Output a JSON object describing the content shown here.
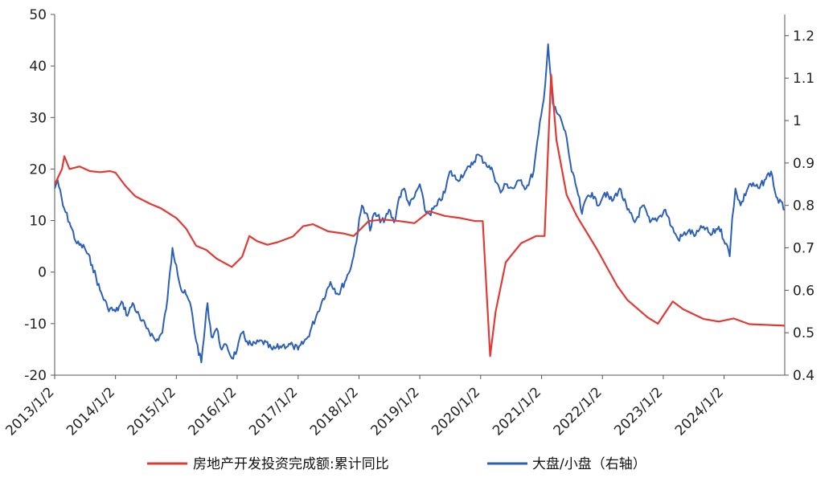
{
  "chart_data": {
    "type": "line",
    "title": "",
    "xlabel": "",
    "ylabel_left": "",
    "ylabel_right": "",
    "grid": false,
    "legend_position": "bottom",
    "x_ticks": [
      "2013/1/2",
      "2014/1/2",
      "2015/1/2",
      "2016/1/2",
      "2017/1/2",
      "2018/1/2",
      "2019/1/2",
      "2020/1/2",
      "2021/1/2",
      "2022/1/2",
      "2023/1/2",
      "2024/1/2"
    ],
    "x_range": [
      "2013/1/2",
      "2024/12/31"
    ],
    "y_left": {
      "range": [
        -20,
        50
      ],
      "ticks": [
        -20,
        -10,
        0,
        10,
        20,
        30,
        40,
        50
      ]
    },
    "y_right": {
      "range": [
        0.4,
        1.25
      ],
      "ticks": [
        "0.4",
        "0.5",
        "0.6",
        "0.7",
        "0.8",
        "0.9",
        "1",
        "1.1",
        "1.2"
      ]
    },
    "series": [
      {
        "name": "房地产开发投资完成额:累计同比",
        "axis": "left",
        "color": "#e03a33",
        "points": [
          [
            "2013/1/2",
            17
          ],
          [
            "2013/2/15",
            20
          ],
          [
            "2013/3/1",
            22.5
          ],
          [
            "2013/4/1",
            20
          ],
          [
            "2013/6/1",
            20.5
          ],
          [
            "2013/8/1",
            19.6
          ],
          [
            "2013/10/1",
            19.4
          ],
          [
            "2013/12/1",
            19.6
          ],
          [
            "2014/1/2",
            19.3
          ],
          [
            "2014/3/1",
            16.8
          ],
          [
            "2014/5/1",
            14.7
          ],
          [
            "2014/8/1",
            13.2
          ],
          [
            "2014/10/1",
            12.4
          ],
          [
            "2015/1/2",
            10.5
          ],
          [
            "2015/3/1",
            8.5
          ],
          [
            "2015/5/1",
            5.1
          ],
          [
            "2015/7/1",
            4.3
          ],
          [
            "2015/9/1",
            2.6
          ],
          [
            "2015/12/1",
            1.0
          ],
          [
            "2016/2/1",
            3.0
          ],
          [
            "2016/3/15",
            7.0
          ],
          [
            "2016/5/1",
            6.0
          ],
          [
            "2016/7/1",
            5.3
          ],
          [
            "2016/9/1",
            5.8
          ],
          [
            "2016/12/1",
            6.9
          ],
          [
            "2017/2/1",
            8.9
          ],
          [
            "2017/4/1",
            9.3
          ],
          [
            "2017/7/1",
            7.9
          ],
          [
            "2017/10/1",
            7.5
          ],
          [
            "2017/12/1",
            7.0
          ],
          [
            "2018/3/1",
            9.9
          ],
          [
            "2018/6/1",
            10.2
          ],
          [
            "2018/9/1",
            9.9
          ],
          [
            "2018/12/1",
            9.5
          ],
          [
            "2019/3/1",
            11.8
          ],
          [
            "2019/6/1",
            10.9
          ],
          [
            "2019/9/1",
            10.5
          ],
          [
            "2019/12/1",
            9.9
          ],
          [
            "2020/1/15",
            9.9
          ],
          [
            "2020/2/28",
            -16.3
          ],
          [
            "2020/4/1",
            -7.7
          ],
          [
            "2020/6/1",
            1.9
          ],
          [
            "2020/9/1",
            5.6
          ],
          [
            "2020/12/1",
            7.0
          ],
          [
            "2021/1/20",
            7.0
          ],
          [
            "2021/2/28",
            38.3
          ],
          [
            "2021/4/1",
            25.6
          ],
          [
            "2021/6/1",
            15.0
          ],
          [
            "2021/8/1",
            10.9
          ],
          [
            "2021/12/1",
            4.4
          ],
          [
            "2022/4/1",
            -2.7
          ],
          [
            "2022/6/1",
            -5.4
          ],
          [
            "2022/10/1",
            -8.8
          ],
          [
            "2022/12/1",
            -10.0
          ],
          [
            "2023/2/28",
            -5.7
          ],
          [
            "2023/5/1",
            -7.2
          ],
          [
            "2023/9/1",
            -9.1
          ],
          [
            "2023/12/1",
            -9.6
          ],
          [
            "2024/2/28",
            -9.0
          ],
          [
            "2024/6/1",
            -10.1
          ],
          [
            "2024/12/31",
            -10.4
          ]
        ]
      },
      {
        "name": "大盘/小盘（右轴）",
        "axis": "right",
        "color": "#2b5fb8",
        "points": [
          [
            "2013/1/2",
            0.84
          ],
          [
            "2013/1/20",
            0.86
          ],
          [
            "2013/2/20",
            0.8
          ],
          [
            "2013/4/1",
            0.76
          ],
          [
            "2013/5/15",
            0.71
          ],
          [
            "2013/7/1",
            0.7
          ],
          [
            "2013/8/15",
            0.66
          ],
          [
            "2013/10/1",
            0.6
          ],
          [
            "2013/11/15",
            0.56
          ],
          [
            "2014/1/2",
            0.55
          ],
          [
            "2014/2/15",
            0.57
          ],
          [
            "2014/3/15",
            0.54
          ],
          [
            "2014/4/15",
            0.57
          ],
          [
            "2014/6/1",
            0.53
          ],
          [
            "2014/7/15",
            0.51
          ],
          [
            "2014/9/1",
            0.48
          ],
          [
            "2014/10/10",
            0.5
          ],
          [
            "2014/11/10",
            0.58
          ],
          [
            "2014/12/10",
            0.7
          ],
          [
            "2015/1/2",
            0.66
          ],
          [
            "2015/2/1",
            0.6
          ],
          [
            "2015/3/1",
            0.59
          ],
          [
            "2015/4/1",
            0.56
          ],
          [
            "2015/5/1",
            0.48
          ],
          [
            "2015/6/1",
            0.43
          ],
          [
            "2015/7/8",
            0.57
          ],
          [
            "2015/8/1",
            0.49
          ],
          [
            "2015/9/1",
            0.51
          ],
          [
            "2015/10/1",
            0.46
          ],
          [
            "2015/11/1",
            0.47
          ],
          [
            "2015/12/1",
            0.44
          ],
          [
            "2016/1/2",
            0.46
          ],
          [
            "2016/2/1",
            0.5
          ],
          [
            "2016/3/1",
            0.48
          ],
          [
            "2016/4/1",
            0.47
          ],
          [
            "2016/6/1",
            0.48
          ],
          [
            "2016/8/1",
            0.46
          ],
          [
            "2016/10/1",
            0.47
          ],
          [
            "2016/12/1",
            0.47
          ],
          [
            "2017/1/2",
            0.46
          ],
          [
            "2017/3/1",
            0.49
          ],
          [
            "2017/5/1",
            0.55
          ],
          [
            "2017/6/1",
            0.58
          ],
          [
            "2017/7/15",
            0.62
          ],
          [
            "2017/9/1",
            0.59
          ],
          [
            "2017/11/1",
            0.64
          ],
          [
            "2017/12/1",
            0.68
          ],
          [
            "2018/1/20",
            0.8
          ],
          [
            "2018/2/20",
            0.78
          ],
          [
            "2018/3/10",
            0.74
          ],
          [
            "2018/4/1",
            0.78
          ],
          [
            "2018/6/1",
            0.76
          ],
          [
            "2018/7/1",
            0.79
          ],
          [
            "2018/8/1",
            0.76
          ],
          [
            "2018/9/1",
            0.82
          ],
          [
            "2018/10/1",
            0.84
          ],
          [
            "2018/11/1",
            0.8
          ],
          [
            "2018/12/1",
            0.82
          ],
          [
            "2019/1/2",
            0.85
          ],
          [
            "2019/2/1",
            0.79
          ],
          [
            "2019/3/1",
            0.78
          ],
          [
            "2019/4/15",
            0.8
          ],
          [
            "2019/6/1",
            0.83
          ],
          [
            "2019/7/1",
            0.88
          ],
          [
            "2019/8/15",
            0.86
          ],
          [
            "2019/10/1",
            0.88
          ],
          [
            "2019/11/1",
            0.89
          ],
          [
            "2019/12/15",
            0.92
          ],
          [
            "2020/2/1",
            0.9
          ],
          [
            "2020/3/15",
            0.88
          ],
          [
            "2020/5/1",
            0.83
          ],
          [
            "2020/6/1",
            0.85
          ],
          [
            "2020/7/15",
            0.84
          ],
          [
            "2020/9/1",
            0.86
          ],
          [
            "2020/10/1",
            0.84
          ],
          [
            "2020/11/15",
            0.88
          ],
          [
            "2020/12/15",
            0.97
          ],
          [
            "2021/1/15",
            1.05
          ],
          [
            "2021/2/10",
            1.18
          ],
          [
            "2021/3/10",
            1.04
          ],
          [
            "2021/4/1",
            1.02
          ],
          [
            "2021/5/1",
            1.0
          ],
          [
            "2021/6/1",
            0.96
          ],
          [
            "2021/7/1",
            0.88
          ],
          [
            "2021/8/1",
            0.84
          ],
          [
            "2021/9/1",
            0.78
          ],
          [
            "2021/10/1",
            0.82
          ],
          [
            "2021/11/1",
            0.83
          ],
          [
            "2021/12/1",
            0.8
          ],
          [
            "2022/1/15",
            0.83
          ],
          [
            "2022/3/1",
            0.81
          ],
          [
            "2022/4/15",
            0.84
          ],
          [
            "2022/6/1",
            0.79
          ],
          [
            "2022/7/15",
            0.76
          ],
          [
            "2022/9/1",
            0.8
          ],
          [
            "2022/10/15",
            0.76
          ],
          [
            "2022/12/1",
            0.77
          ],
          [
            "2023/1/15",
            0.79
          ],
          [
            "2023/2/20",
            0.75
          ],
          [
            "2023/4/1",
            0.72
          ],
          [
            "2023/6/1",
            0.74
          ],
          [
            "2023/7/15",
            0.73
          ],
          [
            "2023/9/1",
            0.75
          ],
          [
            "2023/10/15",
            0.73
          ],
          [
            "2023/12/1",
            0.75
          ],
          [
            "2024/1/15",
            0.71
          ],
          [
            "2024/2/5",
            0.68
          ],
          [
            "2024/2/20",
            0.77
          ],
          [
            "2024/3/10",
            0.84
          ],
          [
            "2024/4/10",
            0.8
          ],
          [
            "2024/6/1",
            0.85
          ],
          [
            "2024/8/1",
            0.84
          ],
          [
            "2024/9/1",
            0.86
          ],
          [
            "2024/10/10",
            0.88
          ],
          [
            "2024/11/10",
            0.82
          ],
          [
            "2024/12/31",
            0.79
          ]
        ]
      }
    ]
  }
}
